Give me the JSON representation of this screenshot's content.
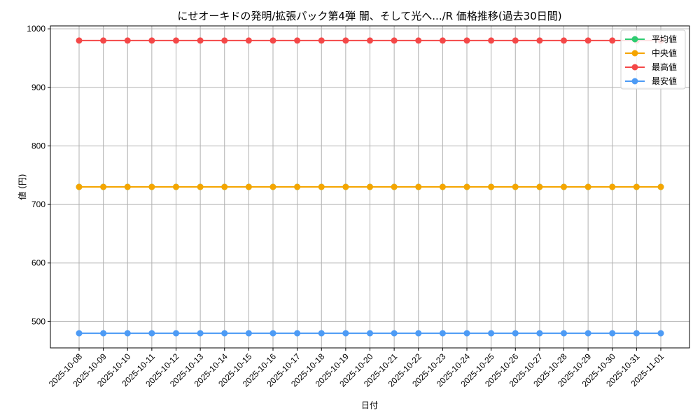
{
  "chart_data": {
    "type": "line",
    "title": "にせオーキドの発明/拡張パック第4弾 闇、そして光へ.../R 価格推移(過去30日間)",
    "xlabel": "日付",
    "ylabel": "値 (円)",
    "ylim": [
      455,
      1005
    ],
    "yticks": [
      500,
      600,
      700,
      800,
      900,
      1000
    ],
    "grid": true,
    "legend_position": "upper right",
    "x": [
      "2025-10-08",
      "2025-10-09",
      "2025-10-10",
      "2025-10-11",
      "2025-10-12",
      "2025-10-13",
      "2025-10-14",
      "2025-10-15",
      "2025-10-16",
      "2025-10-17",
      "2025-10-18",
      "2025-10-19",
      "2025-10-20",
      "2025-10-21",
      "2025-10-22",
      "2025-10-23",
      "2025-10-24",
      "2025-10-25",
      "2025-10-26",
      "2025-10-27",
      "2025-10-28",
      "2025-10-29",
      "2025-10-30",
      "2025-10-31",
      "2025-11-01"
    ],
    "series": [
      {
        "name": "平均値",
        "color": "#2ecc71",
        "values": [
          730,
          730,
          730,
          730,
          730,
          730,
          730,
          730,
          730,
          730,
          730,
          730,
          730,
          730,
          730,
          730,
          730,
          730,
          730,
          730,
          730,
          730,
          730,
          730,
          730
        ]
      },
      {
        "name": "中央値",
        "color": "#f5a500",
        "values": [
          730,
          730,
          730,
          730,
          730,
          730,
          730,
          730,
          730,
          730,
          730,
          730,
          730,
          730,
          730,
          730,
          730,
          730,
          730,
          730,
          730,
          730,
          730,
          730,
          730
        ]
      },
      {
        "name": "最高値",
        "color": "#f44848",
        "values": [
          980,
          980,
          980,
          980,
          980,
          980,
          980,
          980,
          980,
          980,
          980,
          980,
          980,
          980,
          980,
          980,
          980,
          980,
          980,
          980,
          980,
          980,
          980,
          980,
          980
        ]
      },
      {
        "name": "最安値",
        "color": "#4d9bf5",
        "values": [
          480,
          480,
          480,
          480,
          480,
          480,
          480,
          480,
          480,
          480,
          480,
          480,
          480,
          480,
          480,
          480,
          480,
          480,
          480,
          480,
          480,
          480,
          480,
          480,
          480
        ]
      }
    ]
  }
}
